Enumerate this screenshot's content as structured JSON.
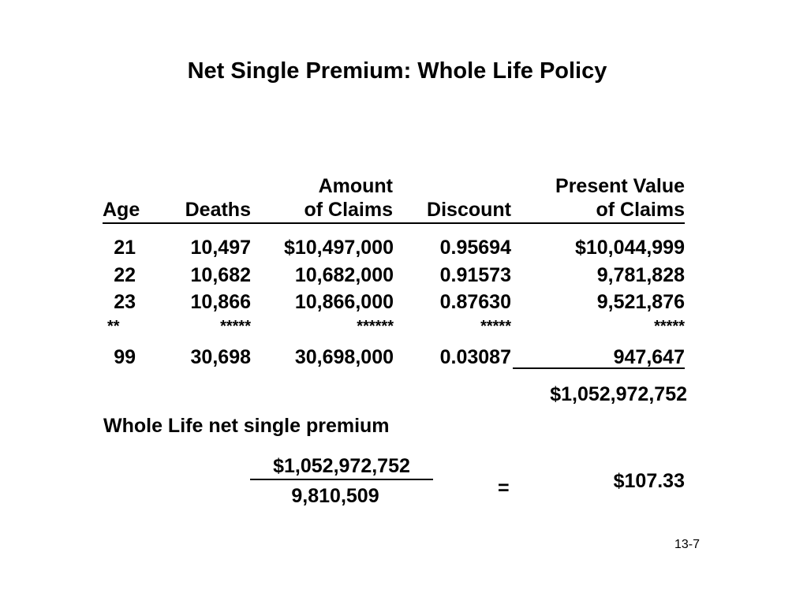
{
  "title": "Net Single Premium:  Whole Life Policy",
  "table": {
    "headers": {
      "age": "Age",
      "deaths": "Deaths",
      "amount_top": "Amount",
      "amount_bottom": "of Claims",
      "discount": "Discount",
      "pv_top": "Present Value",
      "pv_bottom": "of Claims"
    },
    "rows": [
      {
        "age": "21",
        "deaths": "10,497",
        "amount": "$10,497,000",
        "discount": "0.95694",
        "pv": "$10,044,999"
      },
      {
        "age": "22",
        "deaths": "10,682",
        "amount": "10,682,000",
        "discount": "0.91573",
        "pv": "9,781,828"
      },
      {
        "age": "23",
        "deaths": "10,866",
        "amount": "10,866,000",
        "discount": "0.87630",
        "pv": "9,521,876"
      },
      {
        "age": "**",
        "deaths": "*****",
        "amount": "******",
        "discount": "*****",
        "pv": "*****"
      },
      {
        "age": "99",
        "deaths": "30,698",
        "amount": "30,698,000",
        "discount": "0.03087",
        "pv": "947,647"
      }
    ],
    "total": "$1,052,972,752"
  },
  "premium": {
    "label": "Whole Life net single premium",
    "numerator": "$1,052,972,752",
    "denominator": "9,810,509",
    "equals": "=",
    "result": "$107.33"
  },
  "footer": {
    "page": "13-7"
  }
}
